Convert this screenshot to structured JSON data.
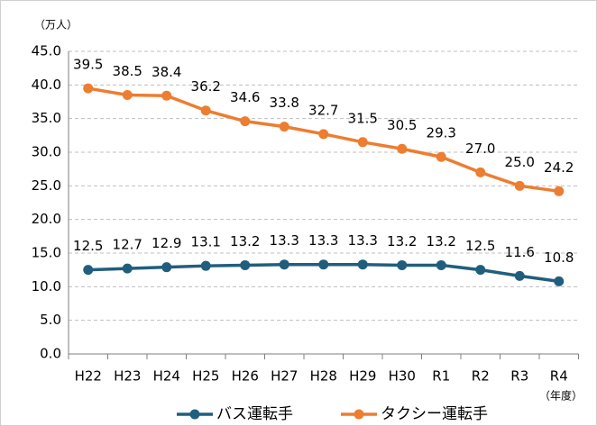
{
  "chart_data": {
    "type": "line",
    "unit_label": "（万人）",
    "x_unit_label": "（年度）",
    "categories": [
      "H22",
      "H23",
      "H24",
      "H25",
      "H26",
      "H27",
      "H28",
      "H29",
      "H30",
      "R1",
      "R2",
      "R3",
      "R4"
    ],
    "series": [
      {
        "name": "バス運転手",
        "color": "#215e7e",
        "values": [
          12.5,
          12.7,
          12.9,
          13.1,
          13.2,
          13.3,
          13.3,
          13.3,
          13.2,
          13.2,
          12.5,
          11.6,
          10.8
        ],
        "value_labels": [
          "12.5",
          "12.7",
          "12.9",
          "13.1",
          "13.2",
          "13.3",
          "13.3",
          "13.3",
          "13.2",
          "13.2",
          "12.5",
          "11.6",
          "10.8"
        ]
      },
      {
        "name": "タクシー運転手",
        "color": "#ed7d31",
        "values": [
          39.5,
          38.5,
          38.4,
          36.2,
          34.6,
          33.8,
          32.7,
          31.5,
          30.5,
          29.3,
          27.0,
          25.0,
          24.2
        ],
        "value_labels": [
          "39.5",
          "38.5",
          "38.4",
          "36.2",
          "34.6",
          "33.8",
          "32.7",
          "31.5",
          "30.5",
          "29.3",
          "27.0",
          "25.0",
          "24.2"
        ]
      }
    ],
    "ylim": [
      0,
      45
    ],
    "yticks": [
      {
        "value": 0,
        "label": "0.0"
      },
      {
        "value": 5,
        "label": "5.0"
      },
      {
        "value": 10,
        "label": "10.0"
      },
      {
        "value": 15,
        "label": "15.0"
      },
      {
        "value": 20,
        "label": "20.0"
      },
      {
        "value": 25,
        "label": "25.0"
      },
      {
        "value": 30,
        "label": "30.0"
      },
      {
        "value": 35,
        "label": "35.0"
      },
      {
        "value": 40,
        "label": "40.0"
      },
      {
        "value": 45,
        "label": "45.0"
      }
    ],
    "grid": true,
    "legend": "bottom"
  }
}
